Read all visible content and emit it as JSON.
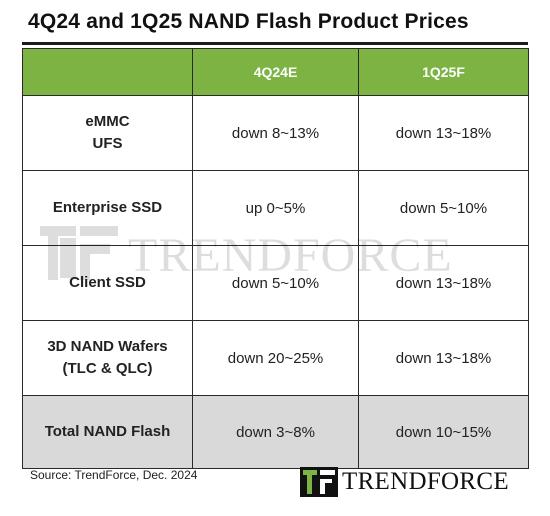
{
  "title": "4Q24 and 1Q25 NAND Flash Product Prices",
  "table": {
    "headers": [
      "",
      "4Q24E",
      "1Q25F"
    ],
    "rows": [
      {
        "label_line1": "eMMC",
        "label_line2": "UFS",
        "q4": "down 8~13%",
        "q1": "down 13~18%"
      },
      {
        "label_line1": "Enterprise SSD",
        "label_line2": "",
        "q4": "up 0~5%",
        "q1": "down 5~10%"
      },
      {
        "label_line1": "Client SSD",
        "label_line2": "",
        "q4": "down 5~10%",
        "q1": "down 13~18%"
      },
      {
        "label_line1": "3D NAND Wafers",
        "label_line2": "(TLC & QLC)",
        "q4": "down 20~25%",
        "q1": "down 13~18%"
      },
      {
        "label_line1": "Total NAND Flash",
        "label_line2": "",
        "q4": "down 3~8%",
        "q1": "down 10~15%"
      }
    ]
  },
  "source": "Source: TrendForce, Dec. 2024",
  "brand": "TRENDFORCE",
  "watermark": "TRENDFORCE",
  "colors": {
    "header_bg": "#7db342",
    "total_bg": "#d9d9d9"
  }
}
